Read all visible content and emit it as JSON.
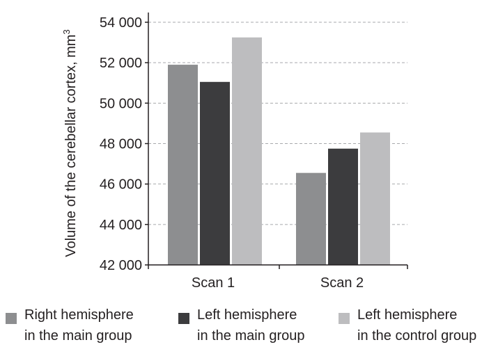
{
  "chart_data": {
    "type": "bar",
    "ylabel": "Volume of the cerebellar cortex, mm",
    "ylabel_superscript": "3",
    "categories": [
      "Scan 1",
      "Scan 2"
    ],
    "ylim": [
      42000,
      54000
    ],
    "yticks": [
      42000,
      44000,
      46000,
      48000,
      50000,
      52000,
      54000
    ],
    "ytick_labels": [
      "42 000",
      "44 000",
      "46 000",
      "48 000",
      "50 000",
      "52 000",
      "54 000"
    ],
    "grid": "horizontal dashed",
    "legend_position": "bottom",
    "series": [
      {
        "name_line1": "Right hemisphere",
        "name_line2": "in the main group",
        "color": "#8d8e90",
        "values": [
          51900,
          46550
        ]
      },
      {
        "name_line1": "Left hemisphere",
        "name_line2": "in the main group",
        "color": "#3c3c3e",
        "values": [
          51050,
          47750
        ]
      },
      {
        "name_line1": "Left hemisphere",
        "name_line2": "in the control group",
        "color": "#bdbdbf",
        "values": [
          53250,
          48550
        ]
      }
    ]
  }
}
